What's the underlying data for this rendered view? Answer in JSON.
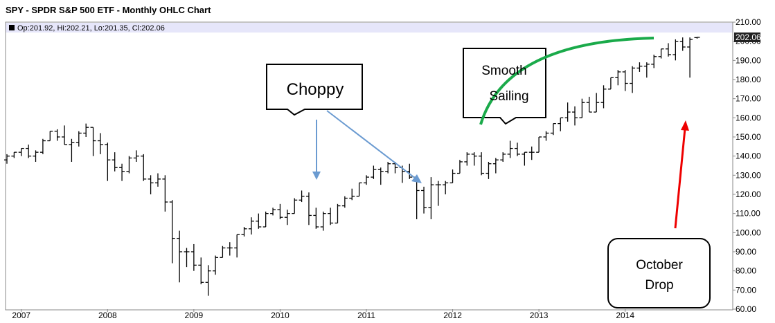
{
  "chart_data": {
    "type": "ohlc",
    "title": "SPY - SPDR S&P 500 ETF - Monthly OHLC Chart",
    "info": "Op:201.92, Hi:202.21, Lo:201.35, Cl:202.06",
    "color": "#000000",
    "grid": false,
    "categories": [
      null,
      null,
      "2007",
      null,
      null,
      null,
      null,
      null,
      null,
      null,
      null,
      null,
      null,
      null,
      "2008",
      null,
      null,
      null,
      null,
      null,
      null,
      null,
      null,
      null,
      null,
      null,
      "2009",
      null,
      null,
      null,
      null,
      null,
      null,
      null,
      null,
      null,
      null,
      null,
      "2010",
      null,
      null,
      null,
      null,
      null,
      null,
      null,
      null,
      null,
      null,
      null,
      "2011",
      null,
      null,
      null,
      null,
      null,
      null,
      null,
      null,
      null,
      null,
      null,
      "2012",
      null,
      null,
      null,
      null,
      null,
      null,
      null,
      null,
      null,
      null,
      null,
      "2013",
      null,
      null,
      null,
      null,
      null,
      null,
      null,
      null,
      null,
      null,
      null,
      "2014",
      null,
      null,
      null,
      null,
      null,
      null,
      null,
      null,
      null,
      null
    ],
    "open": [
      138,
      140,
      142,
      144,
      140,
      142,
      148,
      153,
      150,
      146,
      147,
      152,
      155,
      148,
      146,
      138,
      134,
      132,
      139,
      140,
      128,
      126,
      128,
      116,
      97,
      90,
      90,
      83,
      74,
      80,
      87,
      92,
      92,
      99,
      102,
      106,
      103,
      110,
      112,
      108,
      110,
      117,
      119,
      109,
      103,
      110,
      105,
      114,
      118,
      119,
      126,
      129,
      133,
      132,
      136,
      134,
      132,
      129,
      122,
      113,
      125,
      125,
      126,
      131,
      137,
      141,
      140,
      131,
      136,
      138,
      141,
      144,
      141,
      142,
      142,
      150,
      152,
      157,
      160,
      163,
      160,
      168,
      163,
      168,
      175,
      181,
      184,
      178,
      186,
      187,
      188,
      192,
      196,
      193,
      200,
      197,
      201.92
    ],
    "high": [
      141,
      142,
      144,
      146,
      143,
      149,
      153,
      154,
      156,
      149,
      153,
      157,
      155,
      152,
      147,
      142,
      136,
      140,
      143,
      141,
      130,
      131,
      130,
      117,
      101,
      92,
      94,
      87,
      83,
      88,
      93,
      95,
      99,
      103,
      108,
      110,
      111,
      113,
      115,
      112,
      118,
      122,
      121,
      113,
      111,
      113,
      115,
      119,
      123,
      126,
      130,
      135,
      134,
      137,
      137,
      135,
      136,
      130,
      124,
      129,
      127,
      127,
      133,
      138,
      142,
      142,
      142,
      137,
      139,
      142,
      148,
      147,
      142,
      145,
      150,
      153,
      157,
      160,
      168,
      166,
      170,
      171,
      173,
      177,
      181,
      185,
      185,
      187,
      189,
      189,
      193,
      196,
      199,
      201,
      202,
      202,
      202.21
    ],
    "low": [
      136,
      139,
      140,
      139,
      137,
      141,
      148,
      148,
      146,
      137,
      145,
      150,
      140,
      141,
      127,
      132,
      127,
      131,
      137,
      127,
      120,
      124,
      111,
      84,
      74,
      82,
      80,
      73,
      67,
      78,
      87,
      88,
      87,
      98,
      99,
      102,
      103,
      109,
      107,
      104,
      110,
      116,
      104,
      102,
      101,
      104,
      105,
      113,
      117,
      119,
      125,
      128,
      125,
      131,
      131,
      126,
      128,
      107,
      110,
      107,
      114,
      120,
      126,
      131,
      135,
      135,
      130,
      128,
      131,
      137,
      139,
      140,
      135,
      138,
      142,
      148,
      151,
      153,
      158,
      156,
      160,
      163,
      163,
      165,
      175,
      177,
      174,
      173,
      184,
      181,
      186,
      191,
      192,
      190,
      195,
      181,
      201.35
    ],
    "close": [
      140,
      142,
      144,
      140,
      142,
      148,
      153,
      150,
      146,
      147,
      152,
      155,
      148,
      146,
      138,
      134,
      132,
      139,
      140,
      128,
      126,
      128,
      116,
      97,
      90,
      90,
      83,
      74,
      80,
      87,
      92,
      92,
      99,
      102,
      106,
      103,
      110,
      112,
      108,
      110,
      117,
      119,
      109,
      103,
      110,
      105,
      114,
      118,
      119,
      126,
      129,
      133,
      132,
      136,
      134,
      132,
      129,
      122,
      113,
      125,
      125,
      126,
      131,
      137,
      141,
      140,
      131,
      136,
      138,
      141,
      144,
      141,
      142,
      142,
      150,
      152,
      157,
      160,
      163,
      160,
      168,
      163,
      168,
      175,
      181,
      184,
      178,
      186,
      187,
      188,
      192,
      196,
      193,
      200,
      197,
      201,
      202.06
    ],
    "price_marker": {
      "value": 202.06,
      "label": "202.06"
    },
    "ylim": [
      60,
      210
    ],
    "yticks": [
      {
        "value": 60,
        "label": "60.00"
      },
      {
        "value": 70,
        "label": "70.00"
      },
      {
        "value": 80,
        "label": "80.00"
      },
      {
        "value": 90,
        "label": "90.00"
      },
      {
        "value": 100,
        "label": "100.00"
      },
      {
        "value": 110,
        "label": "110.00"
      },
      {
        "value": 120,
        "label": "120.00"
      },
      {
        "value": 130,
        "label": "130.00"
      },
      {
        "value": 140,
        "label": "140.00"
      },
      {
        "value": 150,
        "label": "150.00"
      },
      {
        "value": 160,
        "label": "160.00"
      },
      {
        "value": 170,
        "label": "170.00"
      },
      {
        "value": 180,
        "label": "180.00"
      },
      {
        "value": 190,
        "label": "190.00"
      },
      {
        "value": 200,
        "label": "200.00"
      },
      {
        "value": 210,
        "label": "210.00"
      }
    ],
    "annotations": [
      [
        "Choppy"
      ],
      [
        "Smooth",
        "Sailing"
      ],
      [
        "October",
        "Drop"
      ]
    ]
  }
}
